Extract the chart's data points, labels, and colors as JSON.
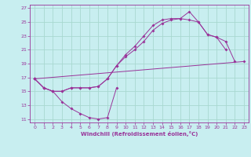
{
  "xlabel": "Windchill (Refroidissement éolien,°C)",
  "bg_color": "#c8eef0",
  "grid_color": "#a8d8d0",
  "line_color": "#993399",
  "xlim": [
    -0.5,
    23.5
  ],
  "ylim": [
    10.5,
    27.5
  ],
  "xticks": [
    0,
    1,
    2,
    3,
    4,
    5,
    6,
    7,
    8,
    9,
    10,
    11,
    12,
    13,
    14,
    15,
    16,
    17,
    18,
    19,
    20,
    21,
    22,
    23
  ],
  "yticks": [
    11,
    13,
    15,
    17,
    19,
    21,
    23,
    25,
    27
  ],
  "curve1_x": [
    0,
    1,
    2,
    3,
    4,
    5,
    6,
    7,
    8,
    9
  ],
  "curve1_y": [
    16.8,
    15.5,
    15.0,
    13.5,
    12.5,
    11.8,
    11.2,
    11.0,
    11.2,
    15.5
  ],
  "curve2_x": [
    0,
    1,
    2,
    3,
    4,
    5,
    6,
    7,
    8,
    9,
    10,
    11,
    12,
    13,
    14,
    15,
    16,
    17,
    18,
    19,
    20,
    21
  ],
  "curve2_y": [
    16.8,
    15.5,
    15.0,
    15.0,
    15.5,
    15.5,
    15.5,
    15.7,
    16.8,
    18.7,
    20.0,
    21.0,
    22.2,
    23.8,
    24.8,
    25.3,
    25.5,
    26.5,
    25.0,
    23.2,
    22.8,
    21.0
  ],
  "curve3_x": [
    0,
    1,
    2,
    3,
    4,
    5,
    6,
    7,
    8,
    9,
    10,
    11,
    12,
    13,
    14,
    15,
    16,
    17,
    18,
    19,
    20,
    21,
    22
  ],
  "curve3_y": [
    16.8,
    15.5,
    15.0,
    15.0,
    15.5,
    15.5,
    15.5,
    15.7,
    16.8,
    18.7,
    20.3,
    21.5,
    23.0,
    24.5,
    25.3,
    25.5,
    25.5,
    25.3,
    25.0,
    23.2,
    22.8,
    22.2,
    19.3
  ],
  "curve4_x": [
    0,
    23
  ],
  "curve4_y": [
    16.8,
    19.3
  ]
}
